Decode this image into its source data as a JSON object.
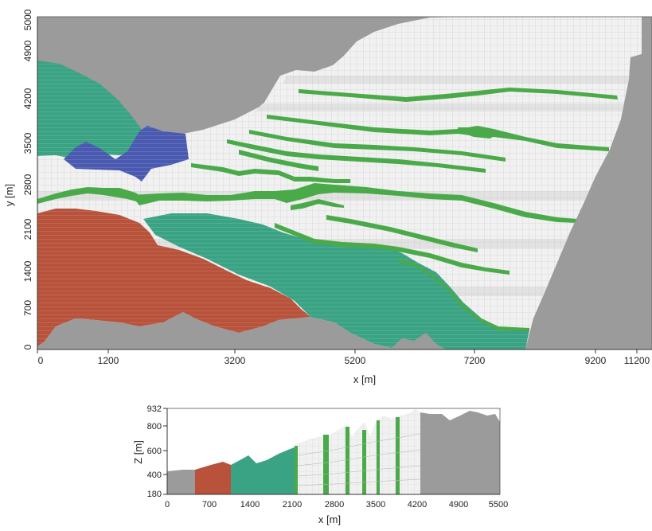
{
  "plan_view": {
    "x_label": "x [m]",
    "y_label": "y [m]",
    "x_ticks": [
      "0",
      "1200",
      "3200",
      "5200",
      "7200",
      "9200",
      "11200"
    ],
    "y_ticks": [
      "0",
      "700",
      "1400",
      "2100",
      "2800",
      "3500",
      "4200",
      "4900",
      "5000"
    ]
  },
  "section_view": {
    "x_label": "x [m]",
    "y_label": "Z [m]",
    "x_ticks": [
      "0",
      "700",
      "1400",
      "2100",
      "2800",
      "3500",
      "4200",
      "4900",
      "5500"
    ],
    "y_ticks": [
      "180",
      "400",
      "600",
      "800",
      "932"
    ]
  },
  "colors": {
    "background_rock": "#9b9b9b",
    "mesh_white": "#efefef",
    "mesh_light": "#e3e3e3",
    "grid_line": "#cfcfcf",
    "layer_green": "#4aaa4a",
    "zone_teal": "#3aa384",
    "zone_blue": "#4a5ab0",
    "zone_red": "#b8523a"
  }
}
